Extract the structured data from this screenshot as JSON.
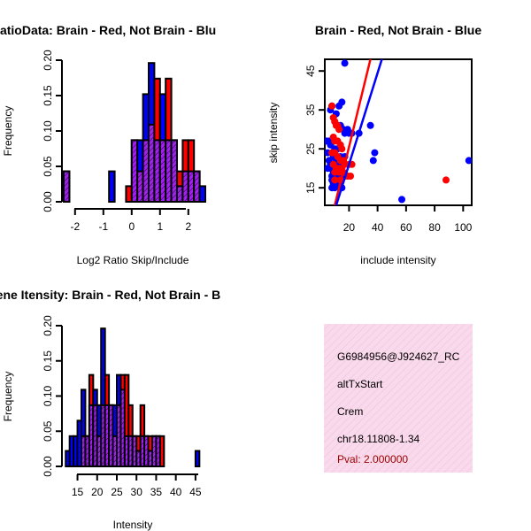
{
  "colors": {
    "red": "#ff0000",
    "blue": "#0000ff",
    "purple": "#a020f0",
    "hatch": "#000000",
    "info_bg": "#f9d9ec",
    "pval": "#990000"
  },
  "chart_data": [
    {
      "type": "bar",
      "title": "RatioData: Brain - Red, Not Brain - Blu",
      "xlabel": "Log2 Ratio Skip/Include",
      "ylabel": "Frequency",
      "xlim": [
        -2.4,
        2.6
      ],
      "ylim": [
        0,
        0.2
      ],
      "xticks": [
        "-2",
        "-1",
        "0",
        "1",
        "2"
      ],
      "yticks": [
        "0.00",
        "0.05",
        "0.10",
        "0.15",
        "0.20"
      ],
      "bin_width": 0.2,
      "bin_starts": [
        -2.4,
        -2.2,
        -2.0,
        -1.8,
        -1.6,
        -1.4,
        -1.2,
        -1.0,
        -0.8,
        -0.6,
        -0.4,
        -0.2,
        0.0,
        0.2,
        0.4,
        0.6,
        0.8,
        1.0,
        1.2,
        1.4,
        1.6,
        1.8,
        2.0,
        2.2,
        2.4
      ],
      "series": [
        {
          "name": "Brain",
          "values": [
            0.043,
            0,
            0,
            0,
            0,
            0,
            0,
            0,
            0,
            0,
            0,
            0.022,
            0.087,
            0.043,
            0.087,
            0.109,
            0.174,
            0.087,
            0.174,
            0.087,
            0.043,
            0.087,
            0.087,
            0.043,
            0
          ]
        },
        {
          "name": "Not Brain",
          "values": [
            0.043,
            0,
            0,
            0,
            0,
            0,
            0,
            0,
            0.043,
            0,
            0,
            0,
            0.087,
            0.087,
            0.152,
            0.196,
            0.087,
            0.152,
            0.087,
            0.087,
            0.022,
            0.043,
            0.043,
            0.043,
            0.022
          ]
        }
      ]
    },
    {
      "type": "scatter",
      "title": "Brain - Red, Not Brain - Blue",
      "xlabel": "include intensity",
      "ylabel": "skip intensity",
      "xlim": [
        3,
        106
      ],
      "ylim": [
        10.5,
        48
      ],
      "xticks": [
        20,
        40,
        60,
        80,
        100
      ],
      "yticks": [
        15,
        25,
        35,
        45
      ],
      "series": [
        {
          "name": "Brain",
          "points": [
            [
              8,
              36
            ],
            [
              9,
              33
            ],
            [
              10,
              32
            ],
            [
              11,
              31
            ],
            [
              12,
              31
            ],
            [
              13,
              30
            ],
            [
              9,
              28
            ],
            [
              10,
              27
            ],
            [
              12,
              27
            ],
            [
              14,
              26
            ],
            [
              15,
              25
            ],
            [
              8,
              24
            ],
            [
              10,
              24
            ],
            [
              12,
              23
            ],
            [
              14,
              22
            ],
            [
              16,
              22
            ],
            [
              9,
              21
            ],
            [
              11,
              20
            ],
            [
              13,
              20
            ],
            [
              15,
              20
            ],
            [
              17,
              21
            ],
            [
              20,
              21
            ],
            [
              22,
              21
            ],
            [
              10,
              19
            ],
            [
              13,
              19
            ],
            [
              16,
              19
            ],
            [
              19,
              18
            ],
            [
              21,
              18
            ],
            [
              10,
              17
            ],
            [
              14,
              17
            ],
            [
              88,
              17
            ]
          ],
          "fit_line": [
            [
              10,
              10.5
            ],
            [
              35,
              48
            ]
          ]
        },
        {
          "name": "Not Brain",
          "points": [
            [
              17,
              47
            ],
            [
              15,
              37
            ],
            [
              13,
              36
            ],
            [
              8,
              36
            ],
            [
              7,
              35
            ],
            [
              11,
              34
            ],
            [
              10,
              32
            ],
            [
              14,
              31
            ],
            [
              16,
              30
            ],
            [
              19,
              30
            ],
            [
              20,
              29
            ],
            [
              17,
              29
            ],
            [
              22,
              29
            ],
            [
              27,
              29
            ],
            [
              35,
              31
            ],
            [
              4,
              27
            ],
            [
              6,
              27
            ],
            [
              9,
              27
            ],
            [
              7,
              26
            ],
            [
              10,
              25
            ],
            [
              12,
              25
            ],
            [
              5,
              24
            ],
            [
              8,
              24
            ],
            [
              9,
              23
            ],
            [
              14,
              23
            ],
            [
              17,
              23
            ],
            [
              38,
              24
            ],
            [
              37,
              22
            ],
            [
              6,
              22
            ],
            [
              11,
              22
            ],
            [
              16,
              22
            ],
            [
              7,
              21
            ],
            [
              10,
              21
            ],
            [
              13,
              21
            ],
            [
              5,
              20
            ],
            [
              7,
              20
            ],
            [
              9,
              19
            ],
            [
              12,
              19
            ],
            [
              14,
              19
            ],
            [
              8,
              18
            ],
            [
              10,
              18
            ],
            [
              13,
              18
            ],
            [
              17,
              18
            ],
            [
              8,
              17
            ],
            [
              10,
              17
            ],
            [
              12,
              17
            ],
            [
              9,
              16
            ],
            [
              11,
              16
            ],
            [
              13,
              16
            ],
            [
              8,
              15
            ],
            [
              10,
              15
            ],
            [
              15,
              15
            ],
            [
              57,
              12
            ],
            [
              104,
              22
            ]
          ],
          "fit_line": [
            [
              11,
              10.5
            ],
            [
              43,
              48
            ]
          ]
        }
      ]
    },
    {
      "type": "bar",
      "title": "Gene Itensity: Brain - Red, Not Brain - B",
      "xlabel": "Intensity",
      "ylabel": "Frequency",
      "xlim": [
        11.5,
        47.5
      ],
      "ylim": [
        0,
        0.2
      ],
      "xticks": [
        "15",
        "20",
        "25",
        "30",
        "35",
        "40",
        "45"
      ],
      "yticks": [
        "0.00",
        "0.05",
        "0.10",
        "0.15",
        "0.20"
      ],
      "bin_width": 1,
      "bin_starts": [
        12,
        13,
        14,
        15,
        16,
        17,
        18,
        19,
        20,
        21,
        22,
        23,
        24,
        25,
        26,
        27,
        28,
        29,
        30,
        31,
        32,
        33,
        34,
        35,
        36,
        37,
        38,
        39,
        40,
        41,
        42,
        43,
        44,
        45,
        46
      ],
      "series": [
        {
          "name": "Brain",
          "values": [
            0,
            0,
            0,
            0,
            0.043,
            0.043,
            0.13,
            0.087,
            0.043,
            0.087,
            0.13,
            0.087,
            0.043,
            0.087,
            0.13,
            0.13,
            0.087,
            0.043,
            0.043,
            0.087,
            0.043,
            0.043,
            0.043,
            0.043,
            0.043,
            0,
            0,
            0,
            0,
            0,
            0,
            0,
            0,
            0,
            0
          ]
        },
        {
          "name": "Not Brain",
          "values": [
            0.022,
            0.043,
            0.043,
            0.065,
            0.109,
            0.043,
            0.087,
            0.109,
            0.087,
            0.196,
            0.087,
            0.087,
            0.087,
            0.13,
            0.109,
            0.043,
            0.043,
            0.043,
            0.022,
            0.043,
            0.043,
            0.022,
            0.043,
            0.043,
            0,
            0,
            0,
            0,
            0,
            0,
            0,
            0,
            0,
            0.022,
            0
          ]
        }
      ]
    }
  ],
  "info": {
    "id": "G6984956@J924627_RC",
    "type": "altTxStart",
    "gene": "Crem",
    "location": "chr18.11808-1.34",
    "pval": "Pval: 2.000000"
  }
}
